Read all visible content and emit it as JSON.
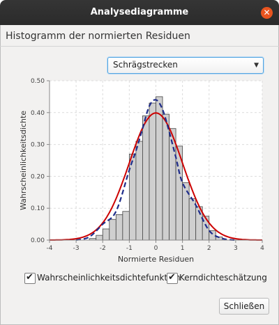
{
  "window": {
    "title": "Analysediagramme"
  },
  "heading": "Histogramm der normierten Residuen",
  "combo": {
    "selected": "Schrägstrecken"
  },
  "checkboxes": [
    {
      "label": "Wahrscheinlichkeitsdichtefunktion",
      "checked": true
    },
    {
      "label": "Kerndichteschätzung",
      "checked": true
    }
  ],
  "buttons": {
    "close_label": "Schließen"
  },
  "colors": {
    "bars": "#cfcfcf",
    "pdf": "#cc0000",
    "kde": "#1f2d8a",
    "accent": "#e9541f"
  },
  "chart_data": {
    "type": "bar",
    "xlabel": "Normierte Residuen",
    "ylabel": "Wahrscheinlichkeitsdichte",
    "xlim": [
      -4,
      4
    ],
    "ylim": [
      0,
      0.5
    ],
    "xticks": [
      "-4",
      "-3",
      "-2",
      "-1",
      "0",
      "1",
      "2",
      "3",
      "4"
    ],
    "yticks": [
      "0.00",
      "0.10",
      "0.20",
      "0.30",
      "0.40",
      "0.50"
    ],
    "grid": true,
    "bin_width": 0.25,
    "bin_starts": [
      -2.5,
      -2.25,
      -2.0,
      -1.75,
      -1.5,
      -1.25,
      -1.0,
      -0.75,
      -0.5,
      -0.25,
      0.0,
      0.25,
      0.5,
      0.75,
      1.0,
      1.25,
      1.5,
      1.75,
      2.0,
      2.25
    ],
    "density": [
      0.005,
      0.015,
      0.035,
      0.065,
      0.08,
      0.09,
      0.27,
      0.31,
      0.39,
      0.43,
      0.45,
      0.395,
      0.35,
      0.295,
      0.18,
      0.13,
      0.105,
      0.075,
      0.03,
      0.01
    ],
    "series": [
      {
        "name": "Wahrscheinlichkeitsdichtefunktion",
        "style": "solid-red",
        "mean": 0,
        "sd": 1
      },
      {
        "name": "Kerndichteschätzung",
        "style": "dashed-navy",
        "x": [
          -3.0,
          -2.5,
          -2.0,
          -1.5,
          -1.0,
          -0.75,
          -0.5,
          -0.25,
          0.0,
          0.25,
          0.5,
          0.75,
          1.0,
          1.5,
          2.0,
          2.5,
          3.0
        ],
        "y": [
          0.0,
          0.01,
          0.05,
          0.09,
          0.22,
          0.28,
          0.35,
          0.42,
          0.44,
          0.41,
          0.34,
          0.26,
          0.18,
          0.11,
          0.03,
          0.005,
          0.0
        ]
      }
    ]
  }
}
